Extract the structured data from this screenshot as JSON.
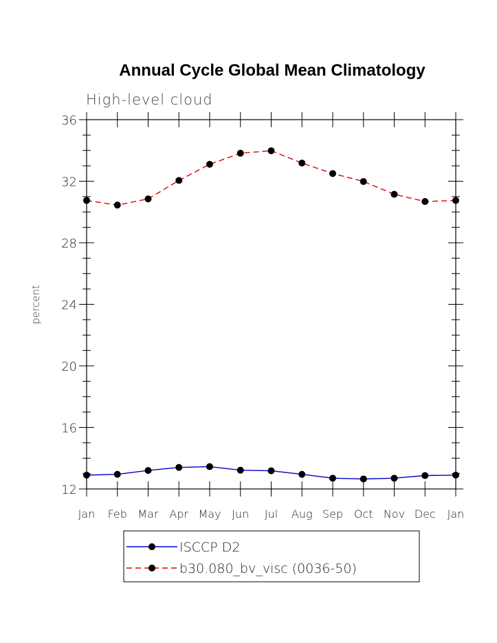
{
  "chart_data": {
    "type": "line",
    "title": "Annual Cycle Global Mean Climatology",
    "subtitle": "High-level cloud",
    "xlabel": "",
    "ylabel": "percent",
    "categories": [
      "Jan",
      "Feb",
      "Mar",
      "Apr",
      "May",
      "Jun",
      "Jul",
      "Aug",
      "Sep",
      "Oct",
      "Nov",
      "Dec",
      "Jan"
    ],
    "ylim": [
      12,
      36
    ],
    "yticks": [
      12,
      16,
      20,
      24,
      28,
      32,
      36
    ],
    "grid": false,
    "legend_position": "bottom",
    "series": [
      {
        "name": "ISCCP D2",
        "color": "#0000cc",
        "line_style": "solid",
        "marker": "filled-circle",
        "values": [
          12.9,
          12.95,
          13.2,
          13.4,
          13.45,
          13.22,
          13.18,
          12.95,
          12.7,
          12.65,
          12.7,
          12.87,
          12.9
        ]
      },
      {
        "name": "b30.080_bv_visc (0036-50)",
        "color": "#dd0000",
        "line_style": "dashed",
        "marker": "filled-circle",
        "values": [
          30.75,
          30.45,
          30.85,
          32.05,
          33.1,
          33.82,
          33.98,
          33.18,
          32.5,
          31.98,
          31.15,
          30.68,
          30.75
        ]
      }
    ]
  }
}
